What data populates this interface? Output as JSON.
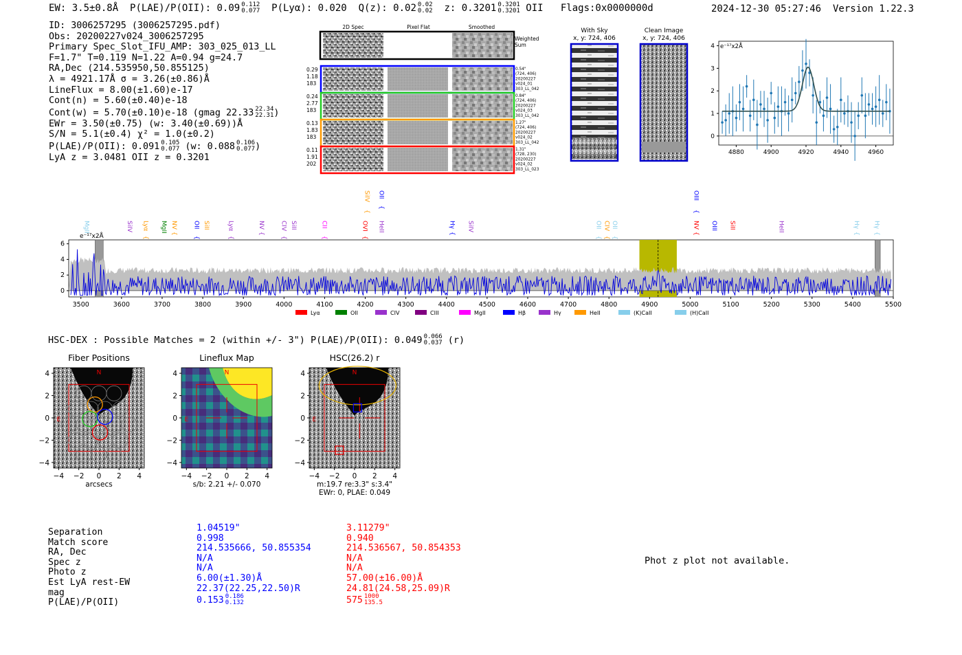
{
  "header": {
    "ew": "EW: 3.5±0.8Å",
    "plae_label": "P(LAE)/P(OII):",
    "plae_val": "0.09",
    "plae_hi": "0.112",
    "plae_lo": "0.077",
    "plya": "P(Lyα): 0.020",
    "qz_label": "Q(z):",
    "qz_val": "0.02",
    "qz_hi": "0.02",
    "qz_lo": "0.02",
    "z_label": "z:",
    "z_val": "0.3201",
    "z_hi": "0.3201",
    "z_lo": "0.3201",
    "z_line": "OII",
    "flags": "Flags:0x0000000d",
    "timestamp": "2024-12-30 05:27:46",
    "version": "Version 1.22.3"
  },
  "info": {
    "id": "ID: 3006257295 (3006257295.pdf)",
    "obs": "Obs: 20200227v024_3006257295",
    "primary": "Primary Spec_Slot_IFU_AMP: 303_025_013_LL",
    "fwhm": "F=1.7\"  T=0.119  N=1.22  A=0.94  g=24.7",
    "radec": "RA,Dec (214.535950,50.855125)",
    "lambda": "λ = 4921.17Å  σ = 3.26(±0.86)Å",
    "lineflux": "LineFlux = 8.00(±1.60)e-17",
    "contn": "Cont(n) = 5.60(±0.40)e-18",
    "contw": "Cont(w) = 5.70(±0.10)e-18 (gmag 22.33",
    "contw_hi": "22.34",
    "contw_lo": "22.31",
    "contw_end": ")",
    "ewr": "EWr = 3.50(±0.75) (w: 3.40(±0.69))Å",
    "sn": "S/N = 5.1(±0.4)  χ² = 1.0(±0.2)",
    "plae": "P(LAE)/P(OII): 0.091",
    "plae_hi": "0.105",
    "plae_lo": "0.077",
    "plae_w": "(w: 0.088",
    "plae_w_hi": "0.106",
    "plae_w_lo": "0.077",
    "plae_end": ")",
    "lyaz": "LyA z = 3.0481  OII z = 0.3201"
  },
  "cutouts": {
    "col_headers": [
      "2D Spec",
      "Pixel Flat",
      "Smoothed"
    ],
    "weighted_label": "Weighted Sum",
    "rows": [
      {
        "left": [
          "0.29",
          "1.18",
          "183"
        ],
        "right": [
          "0.54\"",
          "(724, 406)",
          "20200227",
          "v024_01",
          "303_LL_042"
        ],
        "color": "#0000ff"
      },
      {
        "left": [
          "0.24",
          "2.77",
          "183"
        ],
        "right": [
          "0.84\"",
          "(724, 406)",
          "20200227",
          "v024_03",
          "303_LL_042"
        ],
        "color": "#22cc22"
      },
      {
        "left": [
          "0.13",
          "1.83",
          "183"
        ],
        "right": [
          "1.27\"",
          "(724, 406)",
          "20200227",
          "v024_02",
          "303_LL_042"
        ],
        "color": "#ff9900"
      },
      {
        "left": [
          "0.11",
          "1.91",
          "202"
        ],
        "right": [
          "1.31\"",
          "(728, 230)",
          "20200227",
          "v024_02",
          "303_LL_023"
        ],
        "color": "#ff0000"
      }
    ],
    "with_sky": "With Sky",
    "clean_image": "Clean Image",
    "xy": "x, y: 724, 406"
  },
  "zoom_chart": {
    "type": "scatter",
    "title": "",
    "ylabel_unit": "e⁻¹⁷x2Å",
    "xlim": [
      4870,
      4970
    ],
    "ylim": [
      -0.4,
      4.2
    ],
    "xticks": [
      4880,
      4900,
      4920,
      4940,
      4960
    ],
    "yticks": [
      0,
      1,
      2,
      3,
      4
    ],
    "points": [
      [
        4872,
        0.6
      ],
      [
        4874,
        0.7
      ],
      [
        4876,
        1.0
      ],
      [
        4878,
        1.1
      ],
      [
        4880,
        0.8
      ],
      [
        4882,
        1.5
      ],
      [
        4884,
        1.2
      ],
      [
        4886,
        2.2
      ],
      [
        4888,
        0.9
      ],
      [
        4890,
        1.6
      ],
      [
        4892,
        0.5
      ],
      [
        4894,
        1.4
      ],
      [
        4896,
        1.2
      ],
      [
        4898,
        0.7
      ],
      [
        4900,
        1.9
      ],
      [
        4902,
        0.8
      ],
      [
        4904,
        1.3
      ],
      [
        4906,
        1.1
      ],
      [
        4908,
        1.5
      ],
      [
        4910,
        1.0
      ],
      [
        4912,
        1.6
      ],
      [
        4914,
        1.9
      ],
      [
        4916,
        2.4
      ],
      [
        4918,
        2.9
      ],
      [
        4920,
        3.2
      ],
      [
        4922,
        2.8
      ],
      [
        4924,
        1.8
      ],
      [
        4926,
        0.6
      ],
      [
        4928,
        1.5
      ],
      [
        4930,
        0.9
      ],
      [
        4932,
        1.7
      ],
      [
        4934,
        1.2
      ],
      [
        4936,
        0.3
      ],
      [
        4938,
        0.4
      ],
      [
        4940,
        1.6
      ],
      [
        4942,
        1.0
      ],
      [
        4944,
        1.1
      ],
      [
        4946,
        0.6
      ],
      [
        4948,
        0.0
      ],
      [
        4950,
        0.9
      ],
      [
        4952,
        1.8
      ],
      [
        4954,
        0.9
      ],
      [
        4956,
        1.4
      ],
      [
        4958,
        1.2
      ],
      [
        4960,
        1.3
      ],
      [
        4962,
        1.6
      ],
      [
        4964,
        1.0
      ],
      [
        4966,
        1.5
      ],
      [
        4968,
        1.1
      ]
    ],
    "fit_continuum": 1.1,
    "fit_peak": 3.05,
    "fit_center": 4921.17,
    "fit_sigma": 3.26
  },
  "main_chart": {
    "type": "line",
    "ylabel_unit": "e⁻¹⁷x2Å",
    "xlim": [
      3470,
      5500
    ],
    "ylim": [
      -0.8,
      6.5
    ],
    "xticks": [
      3500,
      3600,
      3700,
      3800,
      3900,
      4000,
      4100,
      4200,
      4300,
      4400,
      4500,
      4600,
      4700,
      4800,
      4900,
      5000,
      5100,
      5200,
      5300,
      5400,
      5500
    ],
    "yticks": [
      0,
      2,
      4,
      6
    ],
    "highlight_band": [
      4875,
      4967
    ],
    "highlight_center": 4921,
    "grey_bars": [
      [
        3535,
        3555
      ],
      [
        5455,
        5468
      ]
    ],
    "line_markers": [
      {
        "label": "MgII",
        "x": 3505,
        "color": "#87ceeb",
        "row": 1
      },
      {
        "label": "SiIV",
        "x": 3610,
        "color": "#9932cc",
        "row": 1
      },
      {
        "label": "Lyα",
        "x": 3650,
        "color": "#ff9900",
        "row": 1
      },
      {
        "label": "MgII",
        "x": 3695,
        "color": "#008000",
        "row": 1
      },
      {
        "label": "NV",
        "x": 3720,
        "color": "#ff9900",
        "row": 1
      },
      {
        "label": "OII",
        "x": 3775,
        "color": "#0000ff",
        "row": 1
      },
      {
        "label": "SiII",
        "x": 3800,
        "color": "#ff9900",
        "row": 1
      },
      {
        "label": "Lyα",
        "x": 3860,
        "color": "#9932cc",
        "row": 1
      },
      {
        "label": "NV",
        "x": 3935,
        "color": "#9932cc",
        "row": 1
      },
      {
        "label": "CIV",
        "x": 3990,
        "color": "#9932cc",
        "row": 1
      },
      {
        "label": "SiII",
        "x": 4015,
        "color": "#9932cc",
        "row": 1
      },
      {
        "label": "CII",
        "x": 4090,
        "color": "#ff00ff",
        "row": 1
      },
      {
        "label": "SiIV",
        "x": 4195,
        "color": "#ff9900",
        "row": 0
      },
      {
        "label": "OII",
        "x": 4230,
        "color": "#0000ff",
        "row": 0
      },
      {
        "label": "OVI",
        "x": 4190,
        "color": "#ff0000",
        "row": 1
      },
      {
        "label": "HeII",
        "x": 4230,
        "color": "#9932cc",
        "row": 1
      },
      {
        "label": "Hγ",
        "x": 4405,
        "color": "#0000ff",
        "row": 1
      },
      {
        "label": "SiIV",
        "x": 4450,
        "color": "#9932cc",
        "row": 1
      },
      {
        "label": "OII",
        "x": 4765,
        "color": "#87ceeb",
        "row": 1
      },
      {
        "label": "CIV",
        "x": 4785,
        "color": "#ff9900",
        "row": 1
      },
      {
        "label": "OII",
        "x": 4805,
        "color": "#87ceeb",
        "row": 1
      },
      {
        "label": "OIII",
        "x": 5005,
        "color": "#0000ff",
        "row": 0
      },
      {
        "label": "NV",
        "x": 5005,
        "color": "#ff0000",
        "row": 1
      },
      {
        "label": "OIII",
        "x": 5050,
        "color": "#0000ff",
        "row": 1
      },
      {
        "label": "SiII",
        "x": 5095,
        "color": "#ff0000",
        "row": 1
      },
      {
        "label": "HeII",
        "x": 5215,
        "color": "#9932cc",
        "row": 1
      },
      {
        "label": "Hγ",
        "x": 5400,
        "color": "#87ceeb",
        "row": 1
      },
      {
        "label": "Hγ",
        "x": 5450,
        "color": "#87ceeb",
        "row": 1
      }
    ],
    "legend": [
      {
        "label": "Lyα",
        "color": "#ff0000"
      },
      {
        "label": "OII",
        "color": "#008000"
      },
      {
        "label": "CIV",
        "color": "#9932cc"
      },
      {
        "label": "CIII",
        "color": "#800080"
      },
      {
        "label": "MgII",
        "color": "#ff00ff"
      },
      {
        "label": "Hβ",
        "color": "#0000ff"
      },
      {
        "label": "Hγ",
        "color": "#9932cc"
      },
      {
        "label": "HeII",
        "color": "#ff9900"
      },
      {
        "label": "(K)CaII",
        "color": "#87ceeb"
      },
      {
        "label": "(H)CaII",
        "color": "#87ceeb"
      }
    ]
  },
  "hsc": {
    "line": "HSC-DEX : Possible Matches = 2 (within +/- 3\")  P(LAE)/P(OII): 0.049",
    "line_hi": "0.066",
    "line_lo": "0.037",
    "line_end": "(r)",
    "panels": [
      {
        "title": "Fiber Positions",
        "xlabel": "arcsecs"
      },
      {
        "title": "Lineflux Map",
        "xlabel": "s/b: 2.21 +/- 0.070"
      },
      {
        "title": "HSC(26.2) r",
        "xlabel": "m:19.7  re:3.3\"  s:3.4\"",
        "xlabel2": "EWr: 0, PLAE: 0.049"
      }
    ],
    "ticks": [
      "4",
      "2",
      "0",
      "−2",
      "−4"
    ],
    "xticks": [
      "−4",
      "−2",
      "0",
      "2",
      "4"
    ],
    "n_label": "N",
    "e_label": "E"
  },
  "matches": {
    "labels": [
      "Separation",
      "Match score",
      "RA, Dec",
      "Spec z",
      "Photo z",
      "Est LyA rest-EW",
      "mag",
      "P(LAE)/P(OII)"
    ],
    "col1": [
      "1.04519\"",
      "0.998",
      "214.535666, 50.855354",
      "N/A",
      "N/A",
      "6.00(±1.30)Å",
      "22.37(22.25,22.50)R",
      "0.153"
    ],
    "col1_plae_hi": "0.186",
    "col1_plae_lo": "0.132",
    "col2": [
      "3.11279\"",
      "0.940",
      "214.536567, 50.854353",
      "N/A",
      "N/A",
      "57.00(±16.00)Å",
      "24.81(24.58,25.09)R",
      "575"
    ],
    "col2_plae_hi": "1000",
    "col2_plae_lo": "135.5",
    "col1_color": "#0000ff",
    "col2_color": "#ff0000"
  },
  "photz": "Phot z plot not available."
}
